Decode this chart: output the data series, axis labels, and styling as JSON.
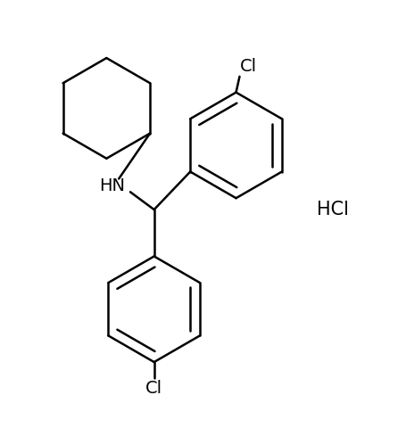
{
  "background_color": "#ffffff",
  "line_color": "#000000",
  "line_width": 1.8,
  "fig_width": 4.55,
  "fig_height": 4.8,
  "dpi": 100,
  "HCl_text": "HCl",
  "HN_text": "HN",
  "Cl_text": "Cl",
  "font_size": 14
}
